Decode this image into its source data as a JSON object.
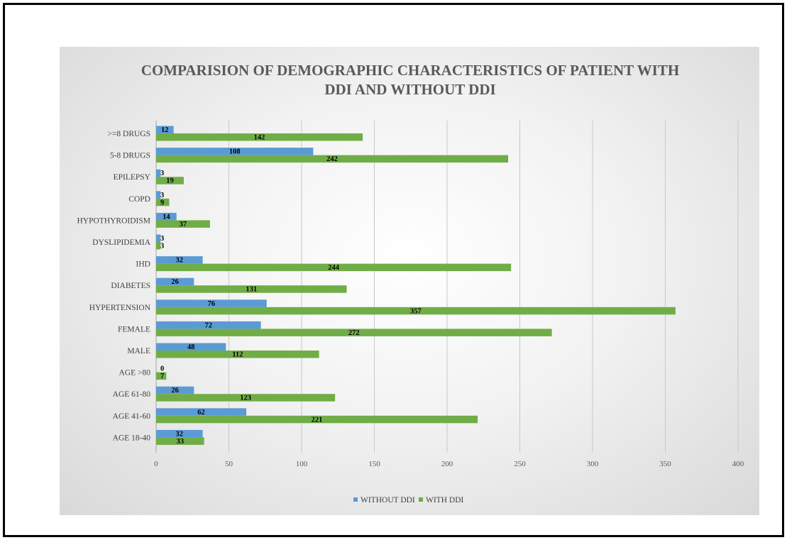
{
  "chart_data": {
    "type": "bar",
    "orientation": "horizontal",
    "title_lines": [
      "COMPARISION OF DEMOGRAPHIC CHARACTERISTICS  OF PATIENT WITH",
      "DDI AND WITHOUT  DDI"
    ],
    "categories": [
      ">=8 DRUGS",
      "5-8 DRUGS",
      "EPILEPSY",
      "COPD",
      "HYPOTHYROIDISM",
      "DYSLIPIDEMIA",
      "IHD",
      "DIABETES",
      "HYPERTENSION",
      "FEMALE",
      "MALE",
      "AGE >80",
      "AGE 61-80",
      "AGE 41-60",
      "AGE 18-40"
    ],
    "series": [
      {
        "name": "WITHOUT DDI",
        "color": "#5b9bd5",
        "values": [
          12,
          108,
          3,
          3,
          14,
          3,
          32,
          26,
          76,
          72,
          48,
          0,
          26,
          62,
          32
        ]
      },
      {
        "name": "WITH DDI",
        "color": "#70ad47",
        "values": [
          142,
          242,
          19,
          9,
          37,
          3,
          244,
          131,
          357,
          272,
          112,
          7,
          123,
          221,
          33
        ]
      }
    ],
    "xlim": [
      0,
      400
    ],
    "xticks": [
      "0",
      "50",
      "100",
      "150",
      "200",
      "250",
      "300",
      "350",
      "400"
    ],
    "grid": "vertical",
    "legend": "bottom",
    "data_labels": true
  }
}
